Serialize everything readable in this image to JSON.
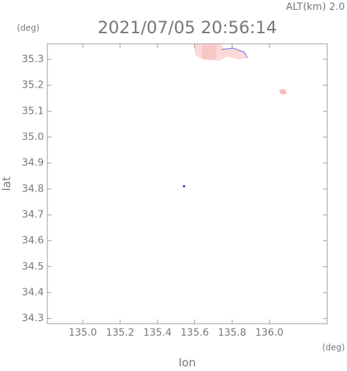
{
  "chart_data": {
    "type": "map",
    "title": "2021/07/05 20:56:14",
    "subtitle": "ALT(km) 2.0",
    "y_unit": "(deg)",
    "x_unit": "(deg)",
    "ylabel": "lat",
    "xlabel": "lon",
    "xlim": [
      134.81,
      136.31
    ],
    "ylim": [
      34.28,
      35.36
    ],
    "xticks": [
      {
        "value": 135.0,
        "label": "135.0"
      },
      135.2,
      135.4,
      135.6,
      135.8,
      {
        "value": 136.0,
        "label": "136.0"
      }
    ],
    "yticks": [
      34.3,
      34.4,
      34.5,
      34.6,
      34.7,
      34.8,
      34.9,
      {
        "value": 35.0,
        "label": "35.0"
      },
      35.1,
      35.2,
      35.3
    ]
  }
}
